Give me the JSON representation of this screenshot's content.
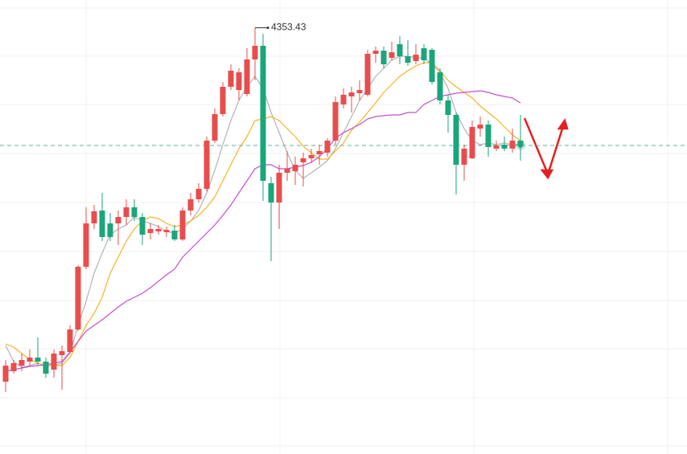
{
  "chart_data": {
    "type": "candlestick",
    "up_color": "#e84d4d",
    "down_color": "#1aa67a",
    "ylim": [
      3823,
      4388
    ],
    "open": [
      3913,
      3926,
      3933,
      3938,
      3943,
      3938,
      3928,
      3946,
      3950,
      3978,
      4056,
      4110,
      4126,
      4110,
      4110,
      4118,
      4130,
      4118,
      4098,
      4100,
      4099,
      4101,
      4090,
      4126,
      4140,
      4153,
      4213,
      4246,
      4280,
      4276,
      4271,
      4314,
      4331,
      4160,
      4136,
      4173,
      4175,
      4186,
      4191,
      4196,
      4198,
      4213,
      4258,
      4268,
      4272,
      4270,
      4321,
      4325,
      4316,
      4333,
      4318,
      4312,
      4328,
      4326,
      4298,
      4263,
      4245,
      4183,
      4191,
      4228,
      4233,
      4203,
      4208,
      4203,
      4213
    ],
    "high": [
      3940,
      3940,
      3948,
      3953,
      3968,
      3943,
      3953,
      3958,
      3983,
      4058,
      4130,
      4133,
      4148,
      4123,
      4126,
      4140,
      4140,
      4123,
      4110,
      4108,
      4106,
      4108,
      4130,
      4148,
      4160,
      4218,
      4253,
      4286,
      4308,
      4303,
      4328,
      4353.43,
      4346,
      4168,
      4183,
      4200,
      4193,
      4198,
      4203,
      4208,
      4216,
      4268,
      4278,
      4280,
      4288,
      4326,
      4330,
      4330,
      4336,
      4343,
      4338,
      4333,
      4333,
      4328,
      4303,
      4270,
      4248,
      4208,
      4238,
      4243,
      4238,
      4213,
      4218,
      4228,
      4245
    ],
    "low": [
      3900,
      3923,
      3926,
      3933,
      3933,
      3918,
      3918,
      3903,
      3948,
      3976,
      4053,
      4103,
      4088,
      4088,
      4083,
      4108,
      4113,
      4083,
      4090,
      4096,
      4093,
      4088,
      4088,
      4120,
      4136,
      4150,
      4210,
      4243,
      4276,
      4263,
      4268,
      4288,
      4138,
      4063,
      4103,
      4163,
      4158,
      4156,
      4185,
      4183,
      4193,
      4208,
      4253,
      4248,
      4263,
      4268,
      4310,
      4303,
      4313,
      4308,
      4306,
      4308,
      4308,
      4283,
      4258,
      4223,
      4146,
      4163,
      4190,
      4218,
      4193,
      4200,
      4200,
      4198,
      4188
    ],
    "close": [
      3933,
      3936,
      3940,
      3943,
      3938,
      3923,
      3948,
      3951,
      3978,
      4056,
      4110,
      4125,
      4093,
      4093,
      4118,
      4130,
      4118,
      4096,
      4103,
      4103,
      4102,
      4090,
      4126,
      4140,
      4153,
      4213,
      4246,
      4280,
      4300,
      4298,
      4314,
      4331,
      4163,
      4136,
      4173,
      4178,
      4183,
      4191,
      4195,
      4200,
      4213,
      4261,
      4270,
      4273,
      4276,
      4321,
      4325,
      4308,
      4323,
      4318,
      4310,
      4320,
      4313,
      4286,
      4263,
      4245,
      4183,
      4203,
      4230,
      4233,
      4205,
      4207,
      4203,
      4213,
      4207
    ],
    "lines": [
      {
        "color": "#b3b3b3",
        "values": [
          3958,
          3938,
          3931,
          3933,
          3936,
          3933,
          3933,
          3936,
          3948,
          3983,
          4013,
          4048,
          4073,
          4096,
          4103,
          4108,
          4118,
          4113,
          4110,
          4106,
          4100,
          4098,
          4103,
          4113,
          4126,
          4148,
          4176,
          4208,
          4238,
          4263,
          4280,
          4293,
          4278,
          4248,
          4223,
          4198,
          4176,
          4166,
          4173,
          4180,
          4188,
          4203,
          4223,
          4243,
          4263,
          4278,
          4293,
          4303,
          4313,
          4318,
          4318,
          4316,
          4316,
          4308,
          4298,
          4278,
          4248,
          4228,
          4213,
          4208,
          4210,
          4208,
          4210,
          4208,
          4208
        ]
      },
      {
        "color": "#f5b325",
        "values": [
          3960,
          3956,
          3948,
          3941,
          3936,
          3933,
          3933,
          3933,
          3943,
          3963,
          3983,
          3998,
          4018,
          4048,
          4068,
          4088,
          4103,
          4113,
          4118,
          4116,
          4110,
          4106,
          4108,
          4113,
          4120,
          4130,
          4143,
          4163,
          4183,
          4203,
          4218,
          4238,
          4240,
          4243,
          4238,
          4228,
          4218,
          4206,
          4198,
          4190,
          4190,
          4200,
          4210,
          4226,
          4236,
          4248,
          4260,
          4273,
          4283,
          4293,
          4300,
          4306,
          4310,
          4310,
          4300,
          4288,
          4280,
          4273,
          4266,
          4256,
          4248,
          4240,
          4230,
          4220,
          4213
        ]
      },
      {
        "color": "#c54fd0",
        "values": [
          3926,
          3928,
          3930,
          3932,
          3933,
          3934,
          3936,
          3938,
          3950,
          3963,
          3976,
          3983,
          3990,
          3998,
          4006,
          4013,
          4018,
          4023,
          4030,
          4038,
          4046,
          4053,
          4068,
          4078,
          4088,
          4098,
          4108,
          4120,
          4133,
          4148,
          4163,
          4178,
          4183,
          4183,
          4178,
          4178,
          4180,
          4182,
          4186,
          4193,
          4203,
          4216,
          4223,
          4228,
          4233,
          4240,
          4243,
          4244,
          4245,
          4245,
          4248,
          4248,
          4258,
          4263,
          4268,
          4270,
          4272,
          4273,
          4274,
          4275,
          4273,
          4270,
          4268,
          4266,
          4260
        ]
      }
    ]
  }
}
